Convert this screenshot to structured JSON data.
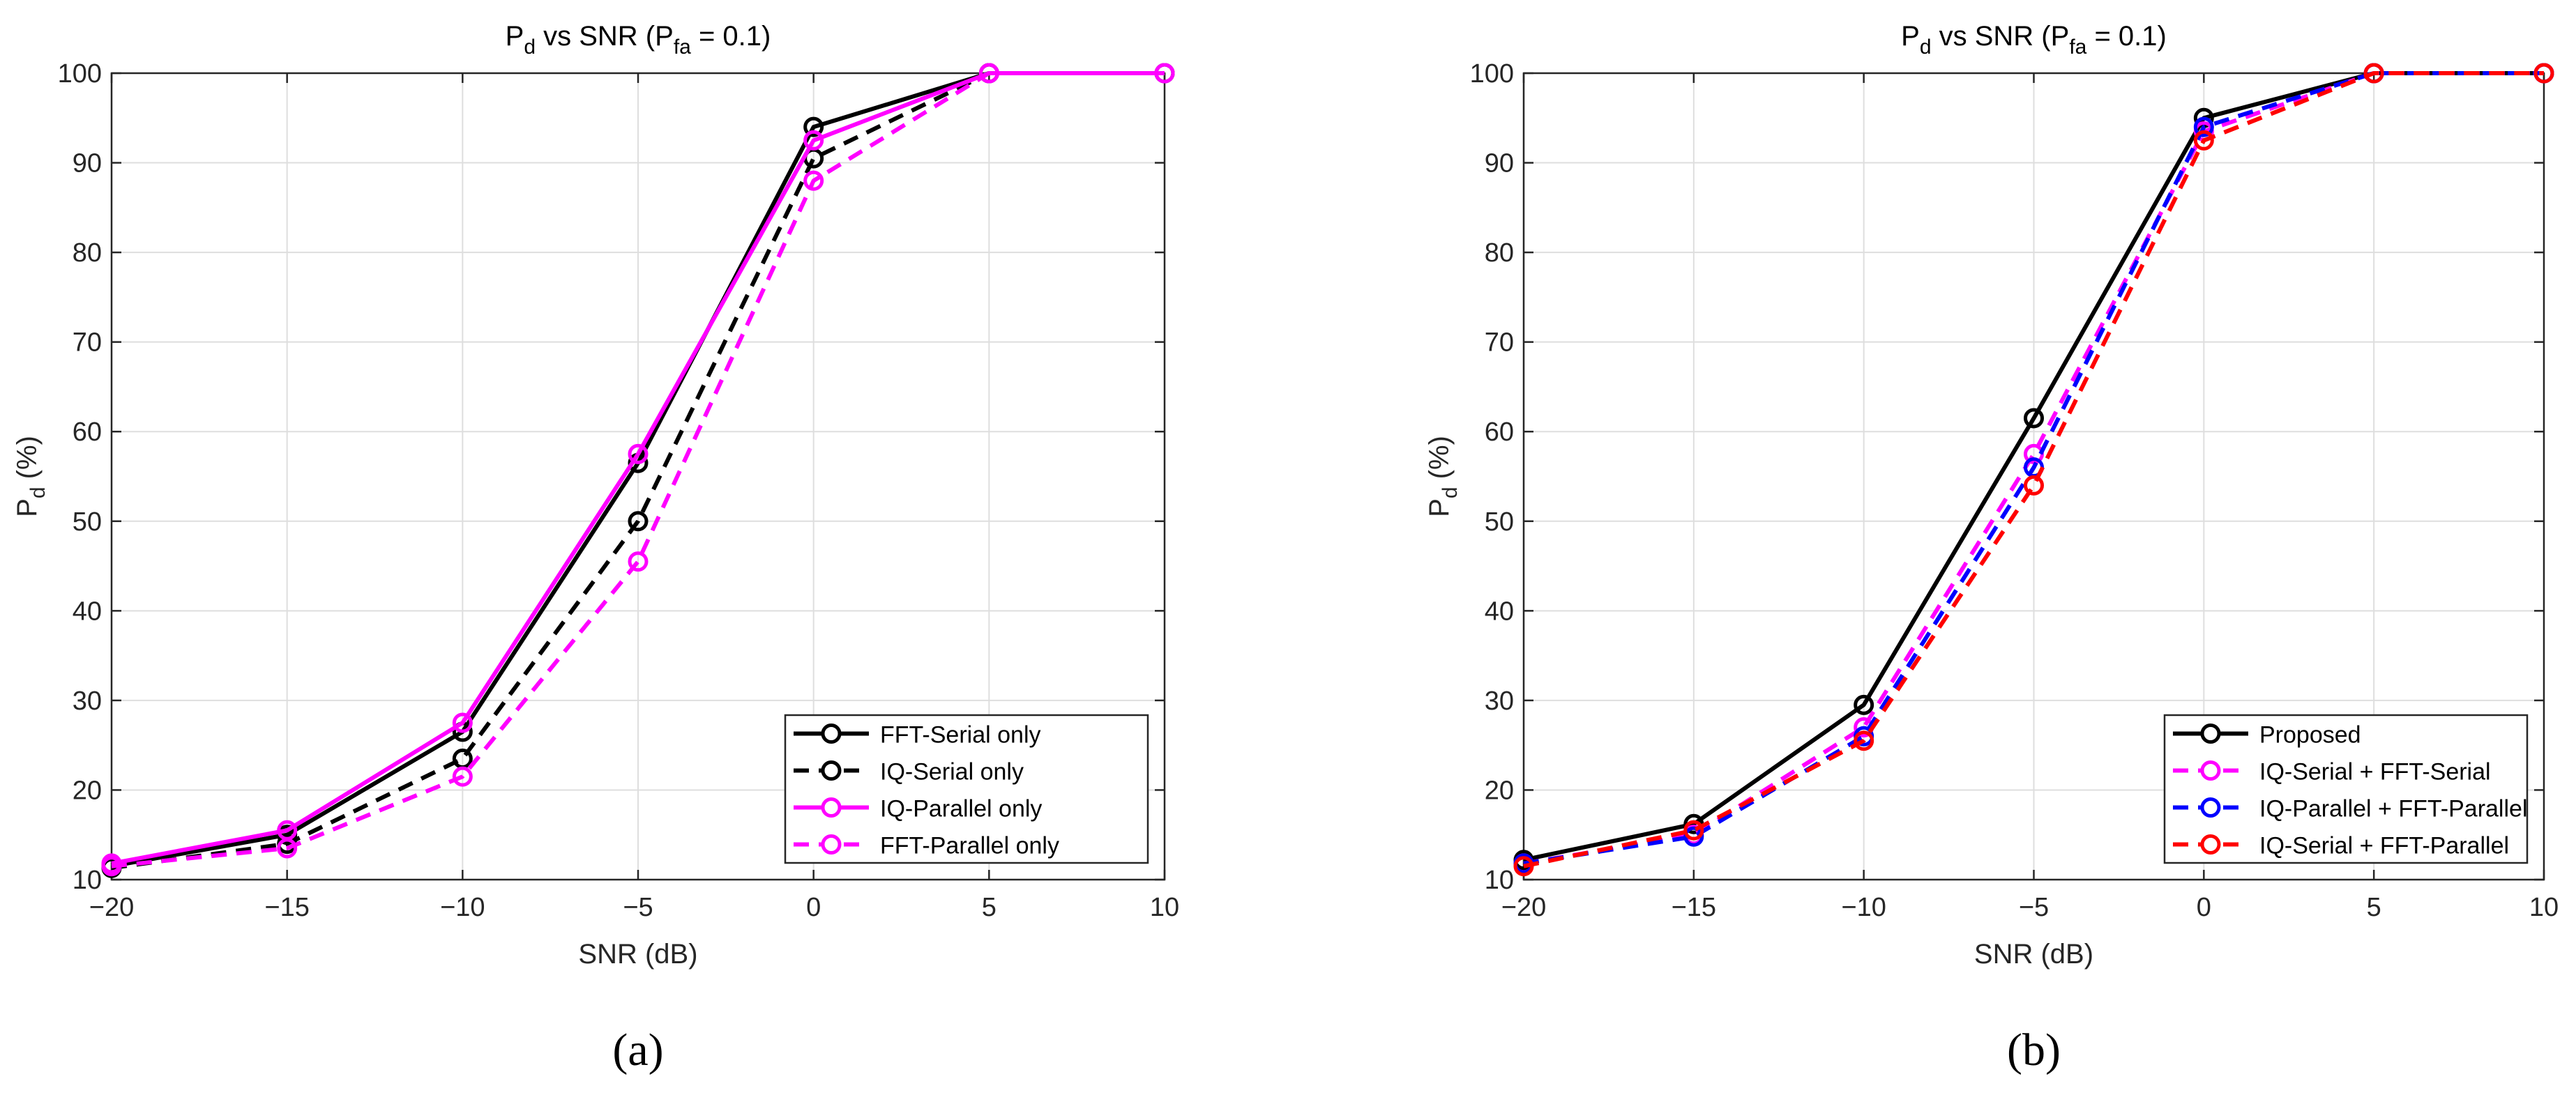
{
  "chart_data": [
    {
      "type": "line",
      "title": {
        "main": "P",
        "main_sub": "d",
        "mid": " vs SNR (P",
        "mid_sub": "fa",
        "end": " = 0.1)"
      },
      "xlabel": "SNR (dB)",
      "ylabel": {
        "main": "P",
        "sub": "d",
        "rest": " (%)"
      },
      "xlim": [
        -20,
        10
      ],
      "ylim": [
        10,
        100
      ],
      "x_ticks": [
        -20,
        -15,
        -10,
        -5,
        0,
        5,
        10
      ],
      "x_tick_labels": [
        "−20",
        "−15",
        "−10",
        "−5",
        "0",
        "5",
        "10"
      ],
      "y_ticks": [
        10,
        20,
        30,
        40,
        50,
        60,
        70,
        80,
        90,
        100
      ],
      "y_tick_labels": [
        "10",
        "20",
        "30",
        "40",
        "50",
        "60",
        "70",
        "80",
        "90",
        "100"
      ],
      "grid": true,
      "legend_position": "bottom-right",
      "caption": "(a)",
      "x": [
        -20,
        -15,
        -10,
        -5,
        0,
        5,
        10
      ],
      "series": [
        {
          "name": "FFT-Serial only",
          "color": "#000000",
          "dashed": false,
          "values": [
            11.5,
            15.0,
            26.5,
            56.5,
            94.0,
            100,
            100
          ]
        },
        {
          "name": "IQ-Serial only",
          "color": "#000000",
          "dashed": true,
          "values": [
            11.3,
            14.0,
            23.5,
            50.0,
            90.5,
            100,
            100
          ]
        },
        {
          "name": "IQ-Parallel only",
          "color": "#ff00ff",
          "dashed": false,
          "values": [
            11.8,
            15.5,
            27.5,
            57.5,
            92.5,
            100,
            100
          ]
        },
        {
          "name": "FFT-Parallel only",
          "color": "#ff00ff",
          "dashed": true,
          "values": [
            11.5,
            13.5,
            21.5,
            45.5,
            88.0,
            100,
            100
          ]
        }
      ]
    },
    {
      "type": "line",
      "title": {
        "main": "P",
        "main_sub": "d",
        "mid": " vs SNR (P",
        "mid_sub": "fa",
        "end": " = 0.1)"
      },
      "xlabel": "SNR (dB)",
      "ylabel": {
        "main": "P",
        "sub": "d",
        "rest": " (%)"
      },
      "xlim": [
        -20,
        10
      ],
      "ylim": [
        10,
        100
      ],
      "x_ticks": [
        -20,
        -15,
        -10,
        -5,
        0,
        5,
        10
      ],
      "x_tick_labels": [
        "−20",
        "−15",
        "−10",
        "−5",
        "0",
        "5",
        "10"
      ],
      "y_ticks": [
        10,
        20,
        30,
        40,
        50,
        60,
        70,
        80,
        90,
        100
      ],
      "y_tick_labels": [
        "10",
        "20",
        "30",
        "40",
        "50",
        "60",
        "70",
        "80",
        "90",
        "100"
      ],
      "grid": true,
      "legend_position": "bottom-right",
      "caption": "(b)",
      "x": [
        -20,
        -15,
        -10,
        -5,
        0,
        5,
        10
      ],
      "series": [
        {
          "name": "Proposed",
          "color": "#000000",
          "dashed": false,
          "values": [
            12.2,
            16.2,
            29.5,
            61.5,
            95.0,
            100,
            100
          ]
        },
        {
          "name": "IQ-Serial + FFT-Serial",
          "color": "#ff00ff",
          "dashed": true,
          "values": [
            11.8,
            15.0,
            27.0,
            57.5,
            93.5,
            100,
            100
          ]
        },
        {
          "name": "IQ-Parallel + FFT-Parallel",
          "color": "#0000ff",
          "dashed": true,
          "values": [
            11.8,
            14.8,
            26.0,
            56.0,
            94.0,
            100,
            100
          ]
        },
        {
          "name": "IQ-Serial + FFT-Parallel",
          "color": "#ff0000",
          "dashed": true,
          "values": [
            11.5,
            15.5,
            25.5,
            54.0,
            92.5,
            100,
            100
          ]
        }
      ]
    }
  ]
}
